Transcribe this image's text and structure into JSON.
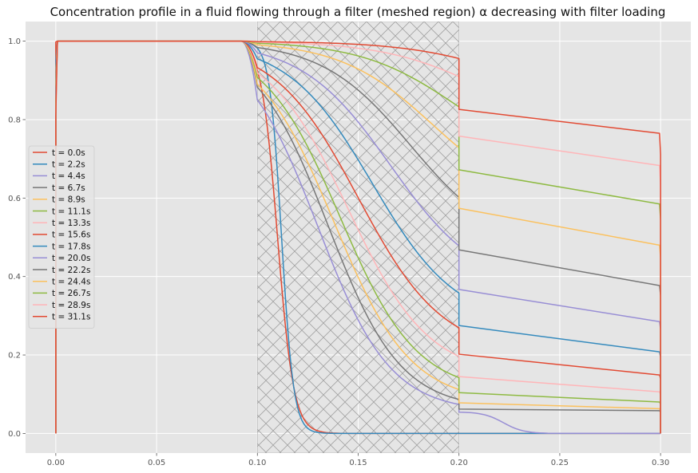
{
  "chart_data": {
    "type": "line",
    "title": "Concentration profile in a fluid flowing through a filter (meshed region) α decreasing with filter loading",
    "xlabel": "",
    "ylabel": "",
    "xlim": [
      -0.015,
      0.315
    ],
    "ylim": [
      -0.05,
      1.05
    ],
    "x_ticks": [
      0.0,
      0.05,
      0.1,
      0.15,
      0.2,
      0.25,
      0.3
    ],
    "x_tick_labels": [
      "0.00",
      "0.05",
      "0.10",
      "0.15",
      "0.20",
      "0.25",
      "0.30"
    ],
    "y_ticks": [
      0.0,
      0.2,
      0.4,
      0.6,
      0.8,
      1.0
    ],
    "y_tick_labels": [
      "0.0",
      "0.2",
      "0.4",
      "0.6",
      "0.8",
      "1.0"
    ],
    "grid": true,
    "filter_region": [
      0.1,
      0.2
    ],
    "legend_position": "center-left",
    "colors": [
      "#E24A33",
      "#348ABD",
      "#988ED5",
      "#777777",
      "#FBC15E",
      "#8EBA42",
      "#FFB5B8"
    ],
    "series": [
      {
        "name": "t = 0.0s",
        "inlet": 0.998,
        "wall": 1.0,
        "mid_c": 0.11,
        "mid_k": 0.004,
        "out_c": 0.0,
        "end_c": 0.0
      },
      {
        "name": "t = 2.2s",
        "inlet": 0.95,
        "wall": 0.0,
        "mid_c": 0.112,
        "mid_k": 0.003,
        "out_c": 0.0,
        "end_c": 0.0
      },
      {
        "name": "t = 4.4s",
        "inlet": 0.93,
        "wall": 0.0,
        "mid_c": 0.13,
        "mid_k": 0.018,
        "out_c": 0.055,
        "end_c": 0.0
      },
      {
        "name": "t = 6.7s",
        "inlet": 0.92,
        "wall": 0.0,
        "mid_c": 0.135,
        "mid_k": 0.018,
        "out_c": 0.062,
        "end_c": 0.058
      },
      {
        "name": "t = 8.9s",
        "inlet": 0.91,
        "wall": 0.0,
        "mid_c": 0.138,
        "mid_k": 0.019,
        "out_c": 0.078,
        "end_c": 0.063
      },
      {
        "name": "t = 11.1s",
        "inlet": 0.9,
        "wall": 0.0,
        "mid_c": 0.141,
        "mid_k": 0.019,
        "out_c": 0.104,
        "end_c": 0.08
      },
      {
        "name": "t = 13.3s",
        "inlet": 0.89,
        "wall": 0.0,
        "mid_c": 0.145,
        "mid_k": 0.02,
        "out_c": 0.145,
        "end_c": 0.106
      },
      {
        "name": "t = 15.6s",
        "inlet": 0.88,
        "wall": 0.0,
        "mid_c": 0.15,
        "mid_k": 0.021,
        "out_c": 0.202,
        "end_c": 0.149
      },
      {
        "name": "t = 17.8s",
        "inlet": 0.87,
        "wall": 0.0,
        "mid_c": 0.157,
        "mid_k": 0.021,
        "out_c": 0.275,
        "end_c": 0.208
      },
      {
        "name": "t = 20.0s",
        "inlet": 0.86,
        "wall": 0.0,
        "mid_c": 0.166,
        "mid_k": 0.022,
        "out_c": 0.367,
        "end_c": 0.285
      },
      {
        "name": "t = 22.2s",
        "inlet": 0.85,
        "wall": 0.0,
        "mid_c": 0.176,
        "mid_k": 0.022,
        "out_c": 0.468,
        "end_c": 0.377
      },
      {
        "name": "t = 24.4s",
        "inlet": 0.84,
        "wall": 0.0,
        "mid_c": 0.187,
        "mid_k": 0.023,
        "out_c": 0.574,
        "end_c": 0.48
      },
      {
        "name": "t = 26.7s",
        "inlet": 0.83,
        "wall": 0.0,
        "mid_c": 0.199,
        "mid_k": 0.024,
        "out_c": 0.672,
        "end_c": 0.585
      },
      {
        "name": "t = 28.9s",
        "inlet": 0.82,
        "wall": 0.0,
        "mid_c": 0.213,
        "mid_k": 0.025,
        "out_c": 0.758,
        "end_c": 0.683
      },
      {
        "name": "t = 31.1s",
        "inlet": 0.81,
        "wall": 0.0,
        "mid_c": 0.228,
        "mid_k": 0.026,
        "out_c": 0.826,
        "end_c": 0.765
      }
    ]
  }
}
